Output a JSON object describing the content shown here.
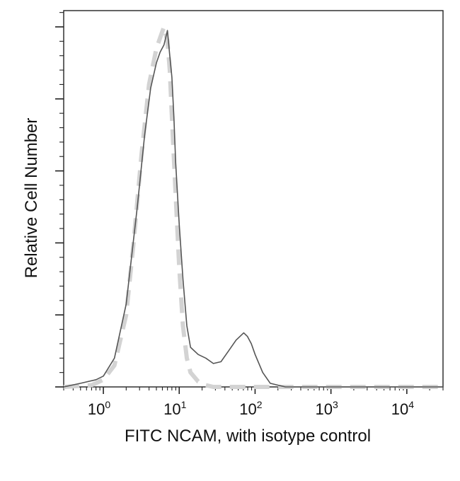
{
  "chart_data": {
    "type": "line",
    "title": "",
    "xlabel": "FITC NCAM, with isotype control",
    "ylabel": "Relative Cell Number",
    "x_scale": "log",
    "xlim": [
      0.3,
      30000
    ],
    "ylim": [
      0,
      1
    ],
    "x_ticks": [
      {
        "value": 1,
        "base": "10",
        "exp": "0"
      },
      {
        "value": 10,
        "base": "10",
        "exp": "1"
      },
      {
        "value": 100,
        "base": "10",
        "exp": "2"
      },
      {
        "value": 1000,
        "base": "10",
        "exp": "3"
      },
      {
        "value": 10000,
        "base": "10",
        "exp": "4"
      }
    ],
    "y_major_ticks": [
      0,
      0.2,
      0.4,
      0.6,
      0.8,
      1.0
    ],
    "grid": false,
    "legend": "none",
    "series": [
      {
        "style": "solid",
        "color": "#555555",
        "x": [
          0.3,
          0.5,
          0.8,
          1.0,
          1.4,
          2.0,
          2.8,
          3.5,
          4.2,
          5.0,
          5.6,
          6.3,
          7.0,
          7.5,
          8.0,
          8.5,
          9.0,
          10.0,
          11.2,
          12.6,
          14.1,
          17.8,
          22.4,
          28.2,
          35.5,
          44.7,
          56.2,
          63.1,
          70.8,
          79.4,
          89.1,
          100,
          125.9,
          158.5,
          199.5,
          251.2,
          398,
          1000,
          3162,
          10000,
          30000
        ],
        "y": [
          0.0,
          0.01,
          0.02,
          0.03,
          0.08,
          0.23,
          0.5,
          0.7,
          0.83,
          0.9,
          0.93,
          0.95,
          0.99,
          0.92,
          0.86,
          0.75,
          0.62,
          0.45,
          0.3,
          0.17,
          0.11,
          0.09,
          0.08,
          0.065,
          0.07,
          0.1,
          0.13,
          0.14,
          0.15,
          0.14,
          0.12,
          0.09,
          0.04,
          0.01,
          0.005,
          0.0,
          0.0,
          0.0,
          0.0,
          0.0,
          0.0
        ]
      },
      {
        "style": "dashed",
        "color": "#d3d3d3",
        "x": [
          0.3,
          0.7,
          1.0,
          1.4,
          2.0,
          2.5,
          3.2,
          4.0,
          5.0,
          5.6,
          6.3,
          7.0,
          7.5,
          8.0,
          8.9,
          10.0,
          11.2,
          12.6,
          14.1,
          17.8,
          22.4,
          28.2,
          35.5,
          50.1,
          79.4,
          30000
        ],
        "y": [
          0.0,
          0.005,
          0.02,
          0.06,
          0.2,
          0.4,
          0.65,
          0.84,
          0.94,
          0.97,
          1.0,
          0.96,
          0.88,
          0.75,
          0.55,
          0.33,
          0.17,
          0.08,
          0.04,
          0.015,
          0.005,
          0.0,
          0.0,
          0.0,
          0.0,
          0.0
        ]
      }
    ]
  }
}
